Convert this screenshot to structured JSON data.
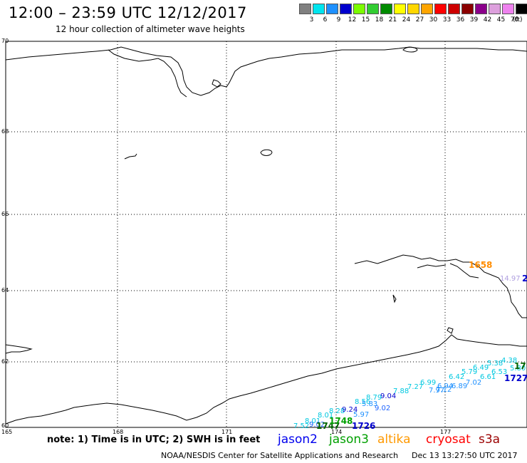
{
  "header": {
    "title": "12:00 – 23:59 UTC 12/12/2017",
    "subtitle": "12 hour collection of altimeter wave heights"
  },
  "legend": {
    "unit": "(ft)",
    "bins": [
      {
        "label": "3",
        "color": "#808080"
      },
      {
        "label": "6",
        "color": "#00e5ee"
      },
      {
        "label": "9",
        "color": "#1e90ff"
      },
      {
        "label": "12",
        "color": "#0000cd"
      },
      {
        "label": "15",
        "color": "#7cfc00"
      },
      {
        "label": "18",
        "color": "#32cd32"
      },
      {
        "label": "21",
        "color": "#008b00"
      },
      {
        "label": "24",
        "color": "#ffff00"
      },
      {
        "label": "27",
        "color": "#ffd700"
      },
      {
        "label": "30",
        "color": "#ffa500"
      },
      {
        "label": "33",
        "color": "#ff0000"
      },
      {
        "label": "36",
        "color": "#cd0000"
      },
      {
        "label": "39",
        "color": "#8b0000"
      },
      {
        "label": "42",
        "color": "#8b008b"
      },
      {
        "label": "45",
        "color": "#dda0dd"
      },
      {
        "label": "70",
        "color": "#ee82ee"
      },
      {
        "label": "",
        "color": "#000000"
      }
    ]
  },
  "map": {
    "lat_labels": [
      "70",
      "68",
      "66",
      "64",
      "62",
      "60"
    ],
    "lon_labels": [
      "165",
      "168",
      "171",
      "174",
      "177"
    ],
    "tracks": [
      {
        "name": "jason3-track",
        "color": "#00c8e0",
        "labels": [
          "7.52",
          "8.01",
          "8.01",
          "8.28",
          "8.56",
          "8.79",
          "7.88",
          "7.27",
          "6.99",
          "6.42",
          "5.79",
          "6.49",
          "5.38",
          "4.38"
        ]
      },
      {
        "name": "jason2-track",
        "color": "#1e64ff",
        "labels": [
          "9.02",
          "9.24",
          "9.04",
          "9.02",
          "7.97",
          "6.89",
          "6.61",
          "6.53",
          "5.80",
          "5.97",
          "6.94",
          "7.12",
          "7.02",
          "5.83"
        ]
      }
    ],
    "time_labels": [
      {
        "text": "1747",
        "color": "#006400"
      },
      {
        "text": "1748",
        "color": "#00a000"
      },
      {
        "text": "1726",
        "color": "#0000cd"
      },
      {
        "text": "1727",
        "color": "#0000cd"
      },
      {
        "text": "17",
        "color": "#006400"
      },
      {
        "text": "1658",
        "color": "#ff8c00"
      },
      {
        "text": "14.97",
        "color": "#b0a0e0"
      },
      {
        "text": "2",
        "color": "#0000cd"
      }
    ]
  },
  "footer": {
    "note": "note: 1) Time is in UTC; 2) SWH is in feet",
    "satellites": [
      {
        "name": "jason2",
        "color": "#0000ee"
      },
      {
        "name": "jason3",
        "color": "#00a000"
      },
      {
        "name": "altika",
        "color": "#ff9900"
      },
      {
        "name": "cryosat",
        "color": "#ff0000"
      },
      {
        "name": "s3a",
        "color": "#9b0000"
      }
    ],
    "credit": "NOAA/NESDIS Center for Satellite Applications and Research",
    "timestamp": "Dec 13 13:27:50 UTC 2017"
  }
}
